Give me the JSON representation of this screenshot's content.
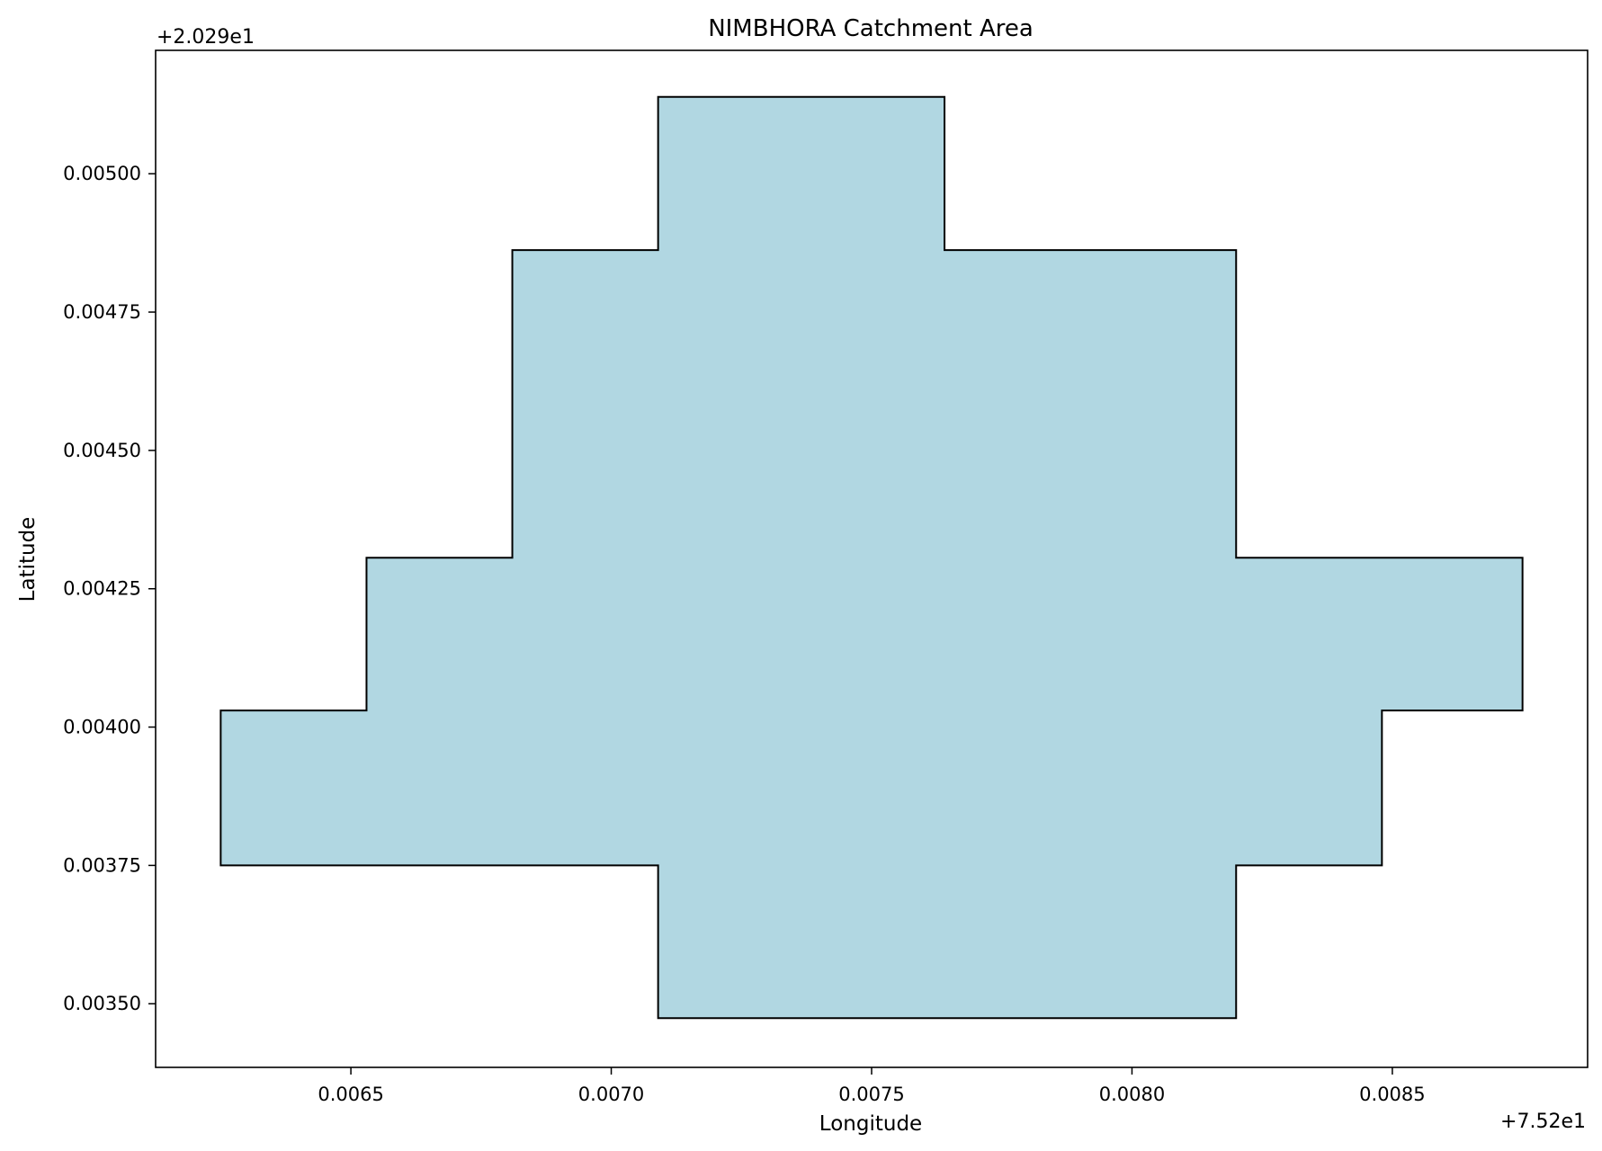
{
  "chart_data": {
    "type": "area",
    "title": "NIMBHORA Catchment Area",
    "xlabel": "Longitude",
    "ylabel": "Latitude",
    "x_offset_label": "+7.52e1",
    "y_offset_label": "+2.029e1",
    "xlim": [
      0.006125,
      0.008875
    ],
    "ylim": [
      0.003385,
      0.005223
    ],
    "xticks": [
      0.0065,
      0.007,
      0.0075,
      0.008,
      0.0085
    ],
    "xtick_labels": [
      "0.0065",
      "0.0070",
      "0.0075",
      "0.0080",
      "0.0085"
    ],
    "yticks": [
      0.0035,
      0.00375,
      0.004,
      0.00425,
      0.0045,
      0.00475,
      0.005
    ],
    "ytick_labels": [
      "0.00350",
      "0.00375",
      "0.00400",
      "0.00425",
      "0.00450",
      "0.00475",
      "0.00500"
    ],
    "grid": false,
    "fill_color": "#b1d7e2",
    "edge_color": "#000000",
    "polygon": [
      {
        "x": 0.00625,
        "y": 0.00375
      },
      {
        "x": 0.00625,
        "y": 0.00403
      },
      {
        "x": 0.00653,
        "y": 0.00403
      },
      {
        "x": 0.00653,
        "y": 0.004306
      },
      {
        "x": 0.00681,
        "y": 0.004306
      },
      {
        "x": 0.00681,
        "y": 0.004862
      },
      {
        "x": 0.00709,
        "y": 0.004862
      },
      {
        "x": 0.00709,
        "y": 0.005139
      },
      {
        "x": 0.00764,
        "y": 0.005139
      },
      {
        "x": 0.00764,
        "y": 0.004862
      },
      {
        "x": 0.0082,
        "y": 0.004862
      },
      {
        "x": 0.0082,
        "y": 0.004306
      },
      {
        "x": 0.00875,
        "y": 0.004306
      },
      {
        "x": 0.00875,
        "y": 0.00403
      },
      {
        "x": 0.00848,
        "y": 0.00403
      },
      {
        "x": 0.00848,
        "y": 0.00375
      },
      {
        "x": 0.0082,
        "y": 0.00375
      },
      {
        "x": 0.0082,
        "y": 0.003474
      },
      {
        "x": 0.00709,
        "y": 0.003474
      },
      {
        "x": 0.00709,
        "y": 0.00375
      }
    ]
  }
}
